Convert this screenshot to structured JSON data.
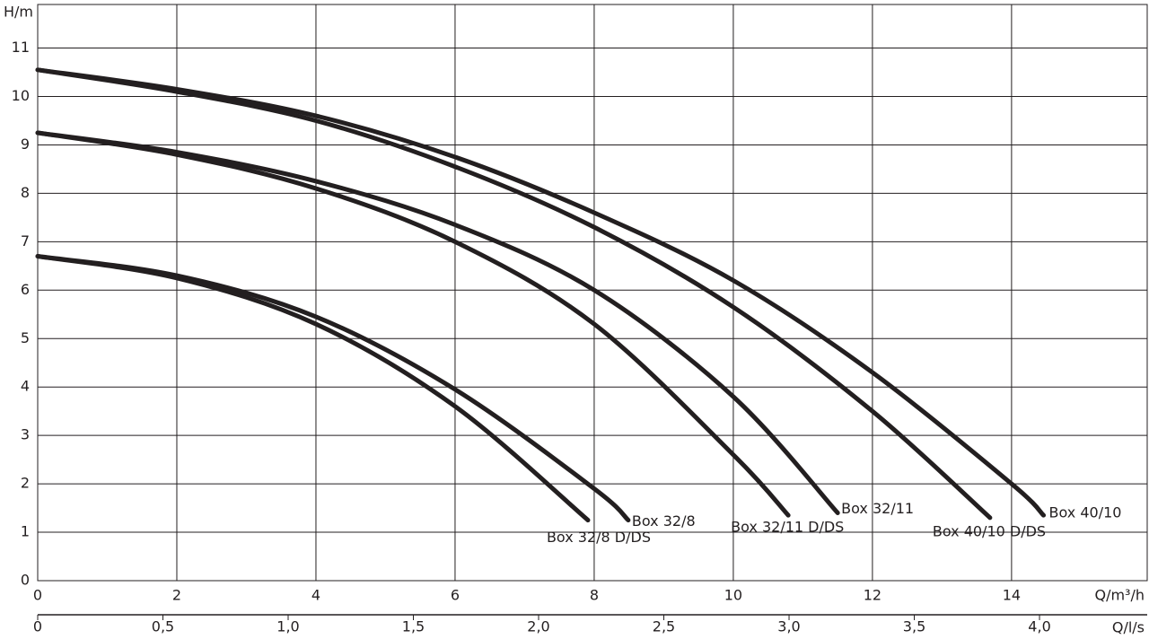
{
  "chart_data": {
    "type": "line",
    "y_label": "H/m",
    "x_label": "Q/m³/h",
    "x2_label": "Q/l/s",
    "xlim": [
      0,
      15.95
    ],
    "xticks": [
      0,
      2,
      4,
      6,
      8,
      10,
      12,
      14
    ],
    "ylim": [
      0,
      11.9
    ],
    "yticks": [
      0,
      1,
      2,
      3,
      4,
      5,
      6,
      7,
      8,
      9,
      10,
      11
    ],
    "x2lim": [
      0,
      4.43
    ],
    "x2ticks": [
      0,
      {
        "value": 0.5,
        "label": "0,5"
      },
      {
        "value": 1.0,
        "label": "1,0"
      },
      {
        "value": 1.5,
        "label": "1,5"
      },
      {
        "value": 2.0,
        "label": "2,0"
      },
      {
        "value": 2.5,
        "label": "2,5"
      },
      {
        "value": 3.0,
        "label": "3,0"
      },
      {
        "value": 3.5,
        "label": "3,5"
      },
      {
        "value": 4.0,
        "label": "4,0"
      }
    ],
    "grid": true,
    "series": [
      {
        "name": "Box 40/10",
        "color": "#231f20",
        "x": [
          0,
          2,
          4,
          6,
          8,
          10,
          12,
          14,
          14.46
        ],
        "values": [
          10.55,
          10.15,
          9.6,
          8.75,
          7.6,
          6.2,
          4.3,
          2.0,
          1.35
        ]
      },
      {
        "name": "Box 40/10 D/DS",
        "color": "#231f20",
        "x": [
          0,
          2,
          4,
          6,
          8,
          10,
          12,
          13.69
        ],
        "values": [
          10.55,
          10.1,
          9.5,
          8.55,
          7.3,
          5.65,
          3.5,
          1.3
        ]
      },
      {
        "name": "Box 32/11",
        "color": "#231f20",
        "x": [
          0,
          2,
          4,
          6,
          8,
          10,
          11.5
        ],
        "values": [
          9.25,
          8.85,
          8.25,
          7.35,
          6.0,
          3.8,
          1.4
        ]
      },
      {
        "name": "Box 32/11 D/DS",
        "color": "#231f20",
        "x": [
          0,
          2,
          4,
          6,
          8,
          10,
          10.79
        ],
        "values": [
          9.25,
          8.8,
          8.1,
          7.0,
          5.3,
          2.6,
          1.35
        ]
      },
      {
        "name": "Box 32/8",
        "color": "#231f20",
        "x": [
          0,
          2,
          4,
          6,
          8,
          8.49
        ],
        "values": [
          6.7,
          6.3,
          5.45,
          3.95,
          1.9,
          1.25
        ]
      },
      {
        "name": "Box 32/8 D/DS",
        "color": "#231f20",
        "x": [
          0,
          2,
          4,
          6,
          7.91
        ],
        "values": [
          6.7,
          6.25,
          5.3,
          3.6,
          1.25
        ]
      }
    ]
  }
}
